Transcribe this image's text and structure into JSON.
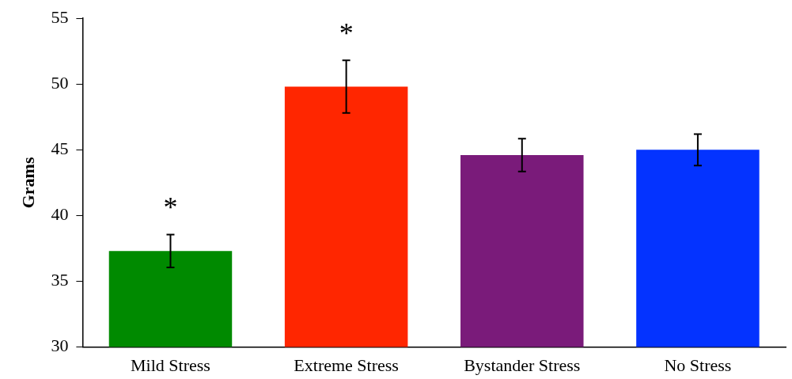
{
  "chart_data": {
    "type": "bar",
    "ylabel": "Grams",
    "categories": [
      "Mild Stress",
      "Extreme Stress",
      "Bystander Stress",
      "No Stress"
    ],
    "values": [
      37.3,
      49.8,
      44.6,
      45.0
    ],
    "colors": [
      "#008a00",
      "#ff2600",
      "#7a1b7a",
      "#0433ff"
    ],
    "errors": [
      1.25,
      2.0,
      1.25,
      1.2
    ],
    "ylim": [
      30,
      55
    ],
    "yticks": [
      30,
      35,
      40,
      45,
      50,
      55
    ],
    "grid": false,
    "legend": false,
    "annotations": [
      "*",
      "*"
    ]
  }
}
